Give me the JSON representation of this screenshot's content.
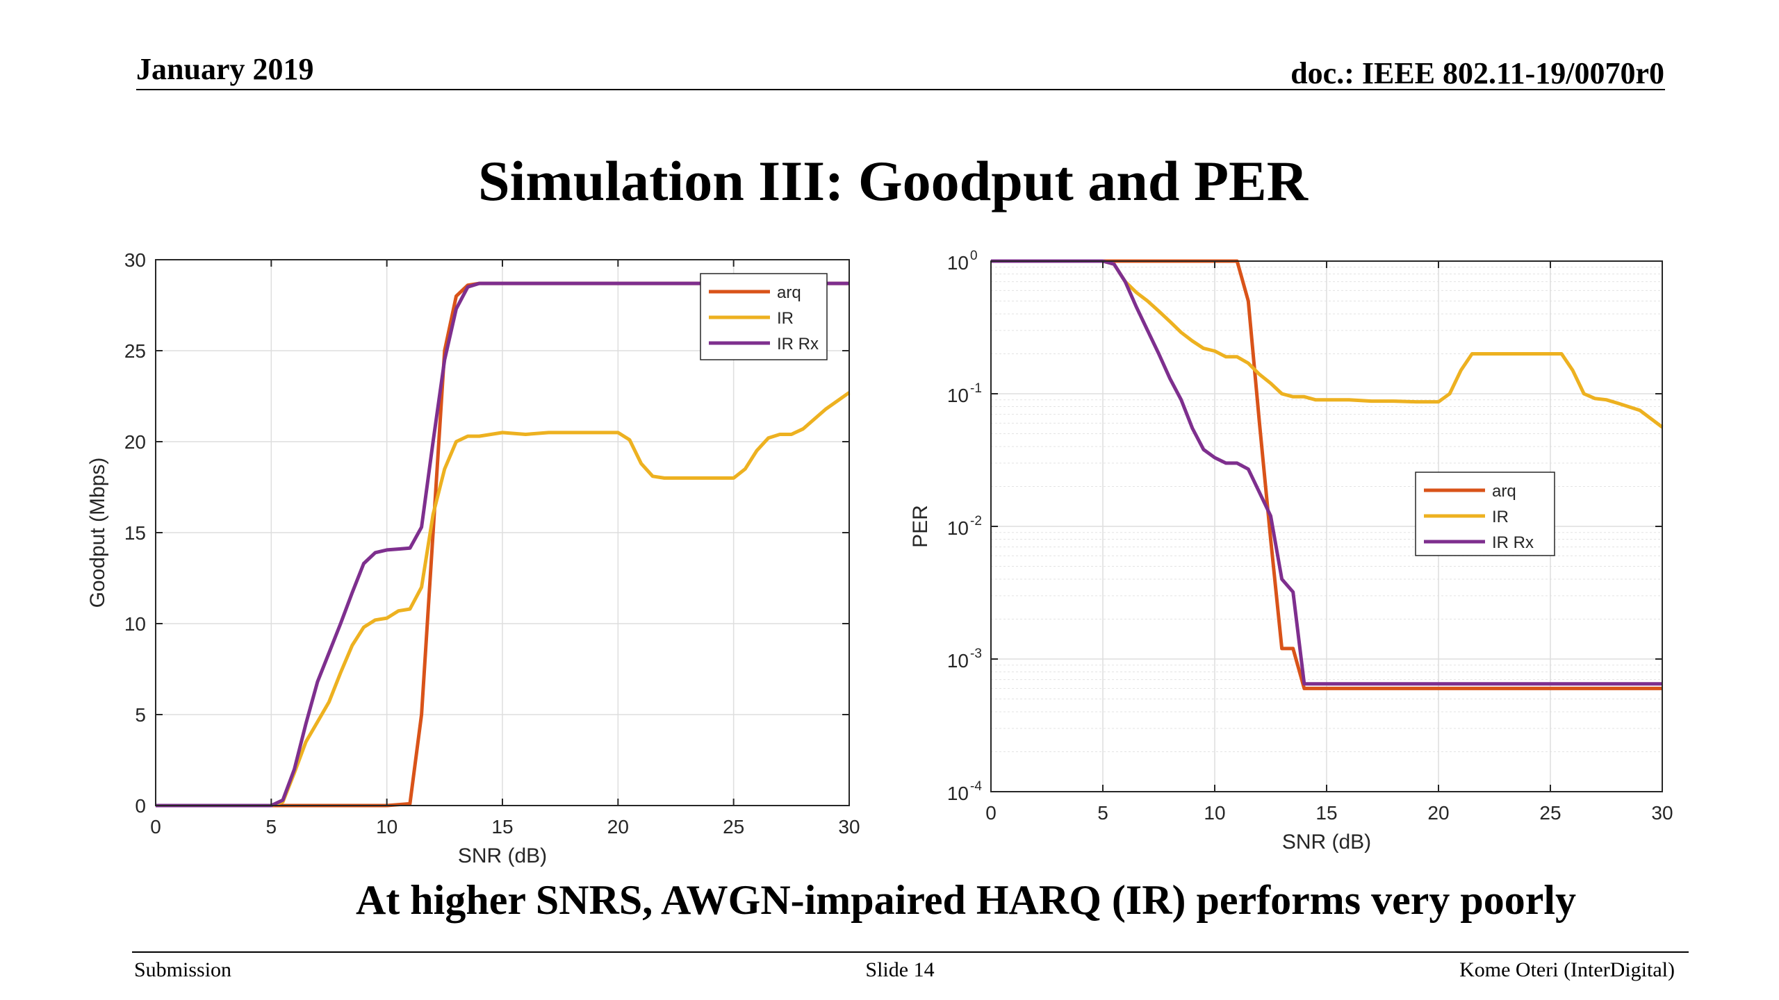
{
  "header": {
    "date": "January 2019",
    "doc": "doc.: IEEE 802.11-19/0070r0"
  },
  "slide_title": "Simulation III: Goodput and PER",
  "caption": "At higher SNRS, AWGN-impaired HARQ (IR) performs very poorly",
  "footer": {
    "left": "Submission",
    "center": "Slide 14",
    "right": "Kome Oteri (InterDigital)"
  },
  "colors": {
    "arq": "#D95319",
    "IR": "#EDB120",
    "IR Rx": "#7E2F8E"
  },
  "chart_data": [
    {
      "type": "line",
      "xlabel": "SNR (dB)",
      "ylabel": "Goodput (Mbps)",
      "xlim": [
        0,
        30
      ],
      "ylim": [
        0,
        30
      ],
      "xticks": [
        0,
        5,
        10,
        15,
        20,
        25,
        30
      ],
      "yticks": [
        0,
        5,
        10,
        15,
        20,
        25,
        30
      ],
      "grid": true,
      "legend_position": "top-right",
      "series": [
        {
          "name": "arq",
          "color": "#D95319",
          "x": [
            0,
            5,
            10,
            11,
            11.5,
            12,
            12.5,
            13,
            13.5,
            14,
            20,
            25,
            30
          ],
          "y": [
            0,
            0,
            0,
            0.1,
            5,
            15,
            25,
            28,
            28.6,
            28.7,
            28.7,
            28.7,
            28.7
          ]
        },
        {
          "name": "IR",
          "color": "#EDB120",
          "x": [
            0,
            5,
            5.5,
            6,
            6.5,
            7,
            7.5,
            8,
            8.5,
            9,
            9.5,
            10,
            10.5,
            11,
            11.5,
            12,
            12.5,
            13,
            13.5,
            14,
            14.5,
            15,
            16,
            17,
            18,
            19,
            20,
            20.5,
            21,
            21.5,
            22,
            23,
            24,
            25,
            25.5,
            26,
            26.5,
            27,
            27.5,
            28,
            29,
            30
          ],
          "y": [
            0,
            0,
            0.2,
            1.8,
            3.5,
            4.6,
            5.7,
            7.3,
            8.8,
            9.8,
            10.2,
            10.3,
            10.7,
            10.8,
            12,
            16,
            18.5,
            20,
            20.3,
            20.3,
            20.4,
            20.5,
            20.4,
            20.5,
            20.5,
            20.5,
            20.5,
            20.1,
            18.8,
            18.1,
            18,
            18,
            18,
            18,
            18.5,
            19.5,
            20.2,
            20.4,
            20.4,
            20.7,
            21.8,
            22.7
          ]
        },
        {
          "name": "IR Rx",
          "color": "#7E2F8E",
          "x": [
            0,
            5,
            5.5,
            6,
            6.5,
            7,
            7.5,
            8,
            8.5,
            9,
            9.5,
            10,
            10.5,
            11,
            11.5,
            12,
            12.5,
            13,
            13.5,
            14,
            20,
            25,
            30
          ],
          "y": [
            0,
            0,
            0.3,
            2,
            4.5,
            6.8,
            8.4,
            10,
            11.7,
            13.3,
            13.9,
            14.05,
            14.1,
            14.15,
            15.3,
            20,
            24.5,
            27.3,
            28.5,
            28.7,
            28.7,
            28.7,
            28.7
          ]
        }
      ]
    },
    {
      "type": "line",
      "xlabel": "SNR (dB)",
      "ylabel": "PER",
      "yscale": "log",
      "xlim": [
        0,
        30
      ],
      "ylim": [
        0.0001,
        1
      ],
      "xticks": [
        0,
        5,
        10,
        15,
        20,
        25,
        30
      ],
      "yticks": [
        0.0001,
        0.001,
        0.01,
        0.1,
        1
      ],
      "ytick_labels": [
        {
          "base": "10",
          "exp": "-4"
        },
        {
          "base": "10",
          "exp": "-3"
        },
        {
          "base": "10",
          "exp": "-2"
        },
        {
          "base": "10",
          "exp": "-1"
        },
        {
          "base": "10",
          "exp": "0"
        }
      ],
      "grid": true,
      "legend_position": "middle-right",
      "series": [
        {
          "name": "arq",
          "color": "#D95319",
          "x": [
            0,
            5,
            10,
            11,
            11.5,
            12,
            12.5,
            13,
            13.5,
            14,
            20,
            25,
            30
          ],
          "y": [
            1,
            1,
            1,
            1,
            0.5,
            0.06,
            0.008,
            0.0012,
            0.0012,
            0.0006,
            0.0006,
            0.0006,
            0.0006
          ]
        },
        {
          "name": "IR",
          "color": "#EDB120",
          "x": [
            0,
            5,
            5.5,
            6,
            6.5,
            7,
            7.5,
            8,
            8.5,
            9,
            9.5,
            10,
            10.5,
            11,
            11.5,
            12,
            12.5,
            13,
            13.5,
            14,
            14.5,
            15,
            16,
            17,
            18,
            19,
            20,
            20.5,
            21,
            21.5,
            22,
            23,
            24,
            25,
            25.5,
            26,
            26.5,
            27,
            27.5,
            28,
            29,
            30
          ],
          "y": [
            1,
            1,
            0.95,
            0.7,
            0.58,
            0.5,
            0.42,
            0.35,
            0.29,
            0.25,
            0.22,
            0.21,
            0.19,
            0.19,
            0.17,
            0.14,
            0.12,
            0.1,
            0.095,
            0.095,
            0.09,
            0.09,
            0.09,
            0.088,
            0.088,
            0.087,
            0.087,
            0.1,
            0.15,
            0.2,
            0.2,
            0.2,
            0.2,
            0.2,
            0.2,
            0.15,
            0.1,
            0.092,
            0.09,
            0.085,
            0.075,
            0.056
          ]
        },
        {
          "name": "IR Rx",
          "color": "#7E2F8E",
          "x": [
            0,
            5,
            5.5,
            6,
            6.5,
            7,
            7.5,
            8,
            8.5,
            9,
            9.5,
            10,
            10.5,
            11,
            11.5,
            12,
            12.5,
            13,
            13.5,
            14,
            20,
            25,
            30
          ],
          "y": [
            1,
            1,
            0.95,
            0.7,
            0.45,
            0.3,
            0.2,
            0.13,
            0.09,
            0.055,
            0.038,
            0.033,
            0.03,
            0.03,
            0.027,
            0.018,
            0.012,
            0.004,
            0.0032,
            0.00065,
            0.00065,
            0.00065,
            0.00065
          ]
        }
      ]
    }
  ]
}
